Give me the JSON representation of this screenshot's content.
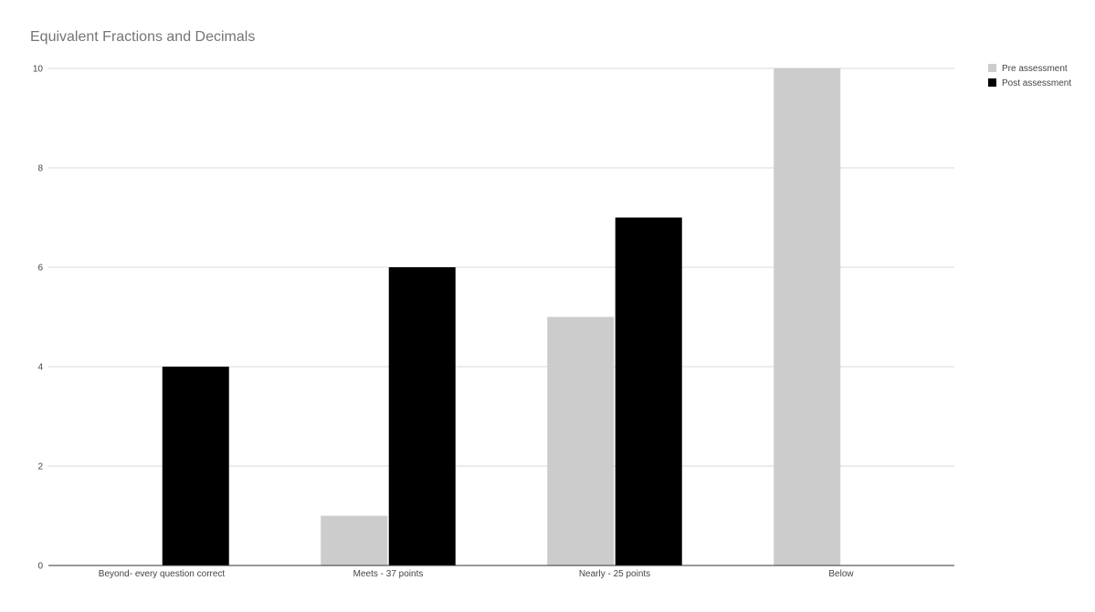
{
  "chart_data": {
    "type": "bar",
    "title": "Equivalent Fractions and Decimals",
    "xlabel": "",
    "ylabel": "",
    "categories": [
      "Beyond- every question correct",
      "Meets - 37 points",
      "Nearly - 25 points",
      "Below"
    ],
    "series": [
      {
        "name": "Pre assessment",
        "color": "#cccccc",
        "values": [
          0,
          1,
          5,
          10
        ]
      },
      {
        "name": "Post assessment",
        "color": "#000000",
        "values": [
          4,
          6,
          7,
          0
        ]
      }
    ],
    "ylim": [
      0,
      10
    ],
    "yticks": [
      0,
      2,
      4,
      6,
      8,
      10
    ],
    "grid": true,
    "legend_position": "top-right"
  }
}
